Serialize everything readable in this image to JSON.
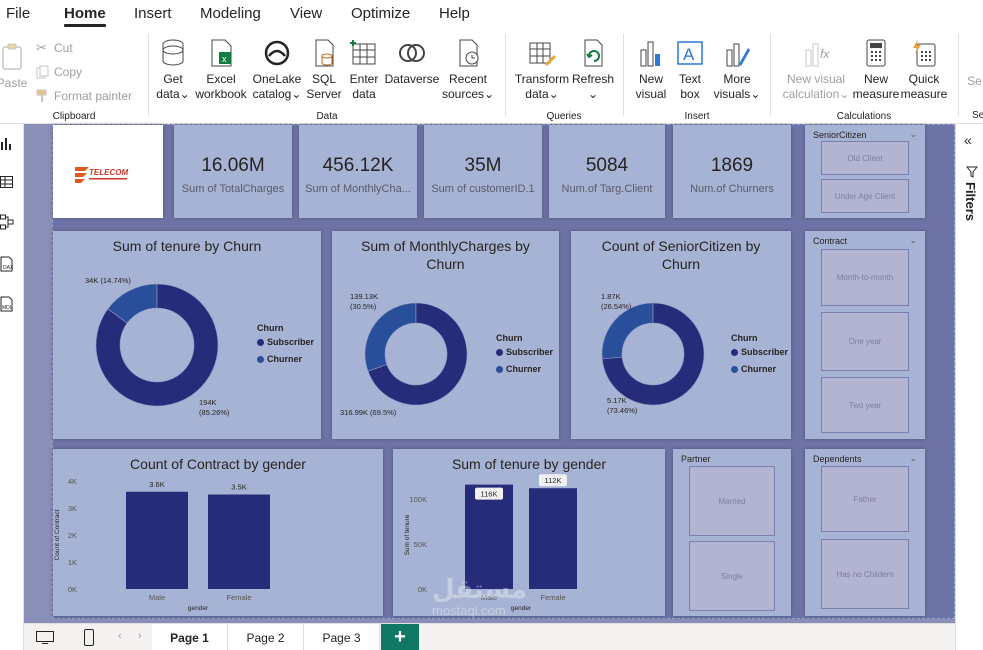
{
  "menu": {
    "tabs": [
      "File",
      "Home",
      "Insert",
      "Modeling",
      "View",
      "Optimize",
      "Help"
    ],
    "active": "Home"
  },
  "ribbon": {
    "clipboard": {
      "label": "Clipboard",
      "paste": "Paste",
      "cut": "Cut",
      "copy": "Copy",
      "format_painter": "Format painter"
    },
    "data": {
      "label": "Data",
      "get_data": [
        "Get",
        "data"
      ],
      "excel": [
        "Excel",
        "workbook"
      ],
      "onelake": [
        "OneLake",
        "catalog"
      ],
      "sql": [
        "SQL",
        "Server"
      ],
      "enter": [
        "Enter",
        "data"
      ],
      "dataverse": [
        "Dataverse",
        ""
      ],
      "recent": [
        "Recent",
        "sources"
      ]
    },
    "queries": {
      "label": "Queries",
      "transform": [
        "Transform",
        "data"
      ],
      "refresh": [
        "Refresh",
        ""
      ]
    },
    "insert": {
      "label": "Insert",
      "new_visual": [
        "New",
        "visual"
      ],
      "text_box": [
        "Text",
        "box"
      ],
      "more_visuals": [
        "More",
        "visuals"
      ]
    },
    "calculations": {
      "label": "Calculations",
      "new_visual_calc": [
        "New visual",
        "calculation"
      ],
      "new_measure": [
        "New",
        "measure"
      ],
      "quick_measure": [
        "Quick",
        "measure"
      ]
    },
    "cutoff": {
      "label": "Se",
      "btn": "Se"
    }
  },
  "filters_pane": {
    "label": "Filters"
  },
  "report": {
    "logo": {
      "text": "TELECOM"
    },
    "kpis": [
      {
        "value": "16.06M",
        "label": "Sum of TotalCharges"
      },
      {
        "value": "456.12K",
        "label": "Sum of MonthlyCha..."
      },
      {
        "value": "35M",
        "label": "Sum of customerID.1"
      },
      {
        "value": "5084",
        "label": "Num.of Targ.Client"
      },
      {
        "value": "1869",
        "label": "Num.of Churners"
      }
    ],
    "slicers": {
      "senior": {
        "title": "SeniorCitizen",
        "items": [
          "Old Client",
          "Under Age Client"
        ]
      },
      "contract": {
        "title": "Contract",
        "items": [
          "Month-to-month",
          "One year",
          "Two year"
        ]
      },
      "partner": {
        "title": "Partner",
        "items": [
          "Married",
          "Single"
        ]
      },
      "dependents": {
        "title": "Dependents",
        "items": [
          "Father",
          "Has no Childern"
        ]
      }
    },
    "donuts": [
      {
        "title": "Sum of tenure by Churn",
        "small_label_line1": "34K (14.74%)",
        "small_label_line2": "",
        "big_label_line1": "194K",
        "big_label_line2": "(85.26%)",
        "legend_title": "Churn",
        "legend": [
          "Subscriber",
          "Churner"
        ]
      },
      {
        "title": "Sum of MonthlyCharges by Churn",
        "small_label_line1": "139.13K",
        "small_label_line2": "(30.5%)",
        "big_label_line1": "316.99K (69.5%)",
        "big_label_line2": "",
        "legend_title": "Churn",
        "legend": [
          "Subscriber",
          "Churner"
        ]
      },
      {
        "title": "Count of SeniorCitizen by Churn",
        "small_label_line1": "1.87K",
        "small_label_line2": "(26.54%)",
        "big_label_line1": "5.17K",
        "big_label_line2": "(73.46%)",
        "legend_title": "Churn",
        "legend": [
          "Subscriber",
          "Churner"
        ]
      }
    ],
    "bars": [
      {
        "title": "Count of Contract by gender",
        "ylabel": "Count of Contract",
        "xlabel": "gender",
        "ticks": [
          "4K",
          "3K",
          "2K",
          "1K",
          "0K"
        ]
      },
      {
        "title": "Sum of tenure by gender",
        "ylabel": "Sum of tenure",
        "xlabel": "gender",
        "ticks": [
          "100K",
          "50K",
          "0K"
        ]
      }
    ]
  },
  "pages": {
    "tabs": [
      "Page 1",
      "Page 2",
      "Page 3"
    ],
    "active": "Page 1",
    "add": "+"
  },
  "watermark": {
    "line1": "مستقل",
    "line2": "mostaql.com"
  },
  "colors": {
    "subscriber": "#262c7a",
    "churner": "#2a4f9a",
    "bar": "#262c7a",
    "card": "#a7b3d4",
    "canvas": "#6e73a6"
  },
  "chart_data": [
    {
      "type": "pie",
      "title": "Sum of tenure by Churn",
      "categories": [
        "Subscriber",
        "Churner"
      ],
      "values": [
        194000,
        34000
      ],
      "percent": [
        85.26,
        14.74
      ],
      "legend": "right"
    },
    {
      "type": "pie",
      "title": "Sum of MonthlyCharges by Churn",
      "categories": [
        "Subscriber",
        "Churner"
      ],
      "values": [
        316990,
        139130
      ],
      "percent": [
        69.5,
        30.5
      ],
      "legend": "right"
    },
    {
      "type": "pie",
      "title": "Count of SeniorCitizen by Churn",
      "categories": [
        "Subscriber",
        "Churner"
      ],
      "values": [
        5170,
        1870
      ],
      "percent": [
        73.46,
        26.54
      ],
      "legend": "right"
    },
    {
      "type": "bar",
      "title": "Count of Contract by gender",
      "categories": [
        "Male",
        "Female"
      ],
      "values": [
        3600,
        3500
      ],
      "labels": [
        "3.6K",
        "3.5K"
      ],
      "xlabel": "gender",
      "ylabel": "Count of Contract",
      "ylim": [
        0,
        4000
      ]
    },
    {
      "type": "bar",
      "title": "Sum of tenure by gender",
      "categories": [
        "Male",
        "Female"
      ],
      "values": [
        116000,
        112000
      ],
      "labels": [
        "116K",
        "112K"
      ],
      "xlabel": "gender",
      "ylabel": "Sum of tenure",
      "ylim": [
        0,
        120000
      ]
    }
  ]
}
